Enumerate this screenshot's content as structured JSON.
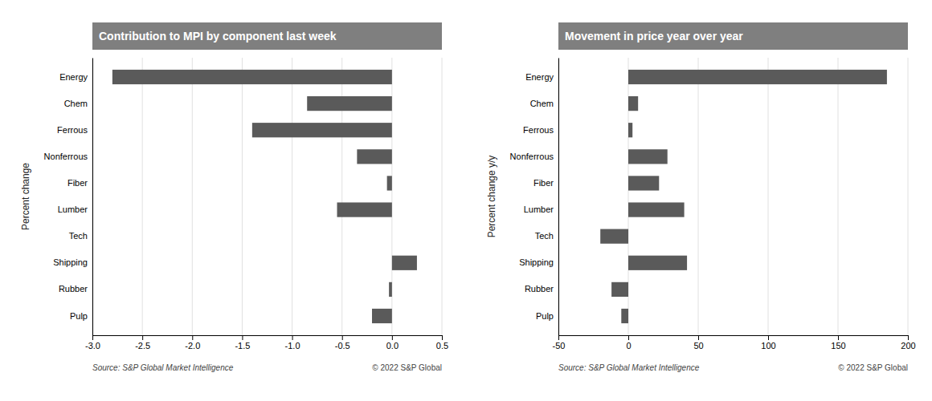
{
  "chart_data": [
    {
      "type": "bar",
      "orientation": "horizontal",
      "title": "Contribution to MPI by component last week",
      "ylabel": "Percent change",
      "categories": [
        "Energy",
        "Chem",
        "Ferrous",
        "Nonferrous",
        "Fiber",
        "Lumber",
        "Tech",
        "Shipping",
        "Rubber",
        "Pulp"
      ],
      "values": [
        -2.8,
        -0.85,
        -1.4,
        -0.35,
        -0.05,
        -0.55,
        0.0,
        0.25,
        -0.03,
        -0.2
      ],
      "color": "#5a5a5a",
      "xlim": [
        -3.0,
        0.5
      ],
      "xticks": [
        {
          "value": -3.0,
          "label": "-3.0"
        },
        -2.5,
        {
          "value": -2.0,
          "label": "-2.0"
        },
        -1.5,
        {
          "value": -1.0,
          "label": "-1.0"
        },
        -0.5,
        {
          "value": 0.0,
          "label": "0.0"
        },
        0.5
      ],
      "grid": true,
      "annotations": [
        "Source: S&P Global Market Intelligence",
        "© 2022 S&P Global"
      ]
    },
    {
      "type": "bar",
      "orientation": "horizontal",
      "title": "Movement in price year over year",
      "ylabel": "Percent change y/y",
      "categories": [
        "Energy",
        "Chem",
        "Ferrous",
        "Nonferrous",
        "Fiber",
        "Lumber",
        "Tech",
        "Shipping",
        "Rubber",
        "Pulp"
      ],
      "values": [
        185,
        7,
        3,
        28,
        22,
        40,
        -20,
        42,
        -12,
        -5
      ],
      "color": "#5a5a5a",
      "xlim": [
        -50,
        200
      ],
      "xticks": [
        -50,
        0,
        50,
        100,
        150,
        200
      ],
      "grid": true,
      "annotations": [
        "Source: S&P Global Market Intelligence",
        "© 2022 S&P Global"
      ]
    }
  ]
}
